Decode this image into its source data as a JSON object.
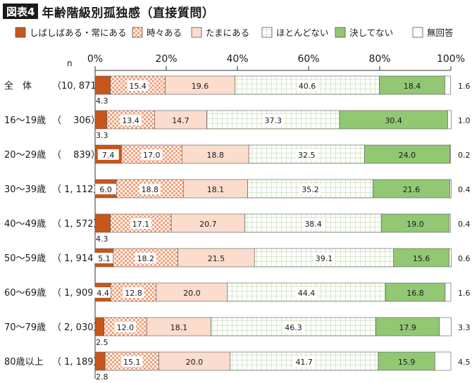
{
  "figure": {
    "badge": "図表4",
    "title": "年齢階級別孤独感（直接質問）"
  },
  "chart_data": {
    "type": "bar",
    "orientation": "horizontal",
    "stacked": "percent",
    "xlim": [
      0,
      100
    ],
    "xticks": [
      "0%",
      "20%",
      "40%",
      "60%",
      "80%",
      "100%"
    ],
    "n_header": "n",
    "legend_position": "top",
    "categories": [
      {
        "label": "全　体",
        "n": "（10, 871）"
      },
      {
        "label": "16～19歳",
        "n": "（　 306）"
      },
      {
        "label": "20～29歳",
        "n": "（　 839）"
      },
      {
        "label": "30～39歳",
        "n": "（ 1, 112）"
      },
      {
        "label": "40～49歳",
        "n": "（ 1, 572）"
      },
      {
        "label": "50～59歳",
        "n": "（ 1, 914）"
      },
      {
        "label": "60～69歳",
        "n": "（ 1, 909）"
      },
      {
        "label": "70～79歳",
        "n": "（ 2, 030）"
      },
      {
        "label": "80歳以上",
        "n": "（ 1, 189）"
      }
    ],
    "series": [
      {
        "name": "しばしばある・常にある",
        "color": "#c8561b",
        "pattern": "solid",
        "values": [
          4.3,
          3.3,
          7.4,
          6.0,
          4.3,
          5.1,
          4.4,
          2.5,
          2.8
        ]
      },
      {
        "name": "時々ある",
        "color": "#f3a27c",
        "pattern": "check",
        "values": [
          15.4,
          13.4,
          17.0,
          18.8,
          17.1,
          18.2,
          12.8,
          12.0,
          15.1
        ]
      },
      {
        "name": "たまにある",
        "color": "#fbdccd",
        "pattern": "solid",
        "values": [
          19.6,
          14.7,
          18.8,
          18.1,
          20.7,
          21.5,
          20.0,
          18.1,
          20.0
        ]
      },
      {
        "name": "ほとんどない",
        "color": "#c9e0b4",
        "pattern": "grid",
        "values": [
          40.6,
          37.3,
          32.5,
          35.2,
          38.4,
          39.1,
          44.4,
          46.3,
          41.7
        ]
      },
      {
        "name": "決してない",
        "color": "#92c773",
        "pattern": "solid",
        "values": [
          18.4,
          30.4,
          24.0,
          21.6,
          19.0,
          15.6,
          16.8,
          17.9,
          15.9
        ]
      },
      {
        "name": "無回答",
        "color": "#ffffff",
        "pattern": "solid",
        "values": [
          1.6,
          1.0,
          0.2,
          0.4,
          0.4,
          0.6,
          1.6,
          3.3,
          4.5
        ]
      }
    ]
  }
}
